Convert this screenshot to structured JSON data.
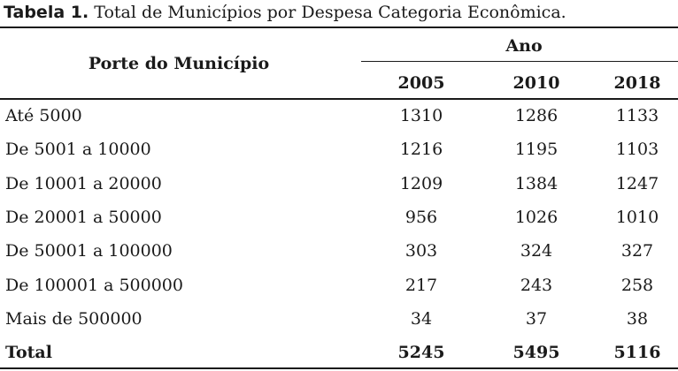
{
  "caption": {
    "label": "Tabela 1.",
    "text": "Total de Municípios por Despesa Categoria Econômica."
  },
  "table": {
    "header": {
      "row_label": "Porte do Município",
      "group": "Ano",
      "columns": [
        "2005",
        "2010",
        "2018"
      ]
    },
    "rows": [
      [
        "Até 5000",
        1310,
        1286,
        1133
      ],
      [
        "De 5001 a 10000",
        1216,
        1195,
        1103
      ],
      [
        "De 10001 a 20000",
        1209,
        1384,
        1247
      ],
      [
        "De 20001 a 50000",
        956,
        1026,
        1010
      ],
      [
        "De 50001 a 100000",
        303,
        324,
        327
      ],
      [
        "De 100001 a 500000",
        217,
        243,
        258
      ],
      [
        "Mais de 500000",
        34,
        37,
        38
      ]
    ],
    "total": [
      "Total",
      5245,
      5495,
      5116
    ]
  }
}
